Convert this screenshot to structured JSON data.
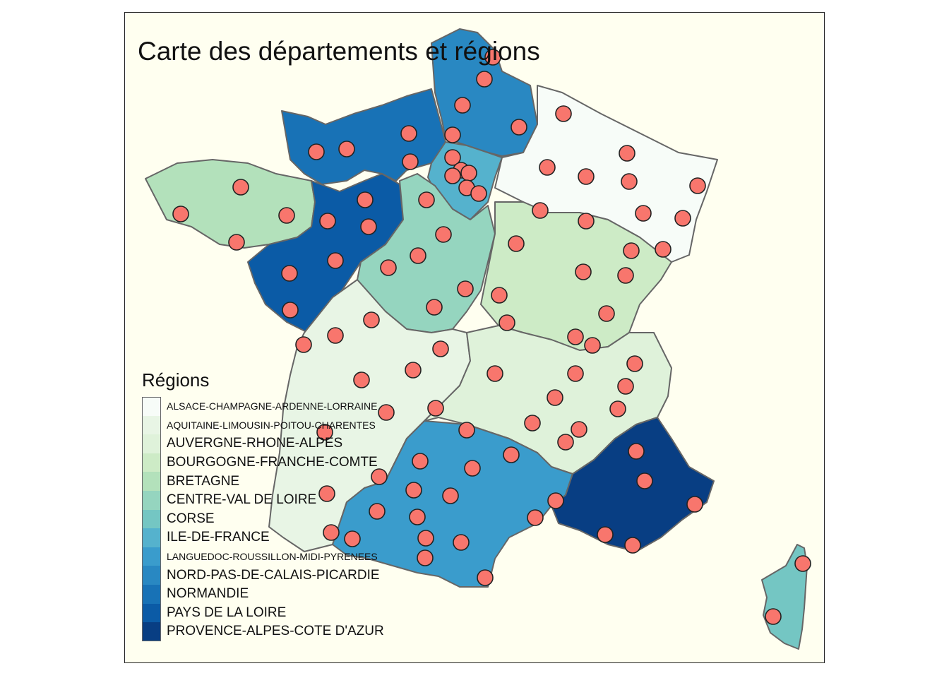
{
  "title": "Carte des départements et régions",
  "colors": {
    "panel_background": "#fffff0",
    "marker_fill": "#f8766d",
    "marker_stroke": "#222222",
    "border": "#666666"
  },
  "legend": {
    "title": "Régions",
    "items": [
      {
        "label": "ALSACE-CHAMPAGNE-ARDENNE-LORRAINE",
        "color": "#f7fcf8"
      },
      {
        "label": "AQUITAINE-LIMOUSIN-POITOU-CHARENTES",
        "color": "#e8f5e5"
      },
      {
        "label": "AUVERGNE-RHONE-ALPES",
        "color": "#dff2da"
      },
      {
        "label": "BOURGOGNE-FRANCHE-COMTE",
        "color": "#cdebc6"
      },
      {
        "label": "BRETAGNE",
        "color": "#b3e1bb"
      },
      {
        "label": "CENTRE-VAL DE LOIRE",
        "color": "#95d5bf"
      },
      {
        "label": "CORSE",
        "color": "#74c6c3"
      },
      {
        "label": "ILE-DE-FRANCE",
        "color": "#55b2cd"
      },
      {
        "label": "LANGUEDOC-ROUSSILLON-MIDI-PYRENEES",
        "color": "#3a9ccc"
      },
      {
        "label": "NORD-PAS-DE-CALAIS-PICARDIE",
        "color": "#2988c2"
      },
      {
        "label": "NORMANDIE",
        "color": "#1872b6"
      },
      {
        "label": "PAYS DE LA LOIRE",
        "color": "#0b5ba6"
      },
      {
        "label": "PROVENCE-ALPES-COTE D'AZUR",
        "color": "#083e83"
      }
    ]
  }
}
